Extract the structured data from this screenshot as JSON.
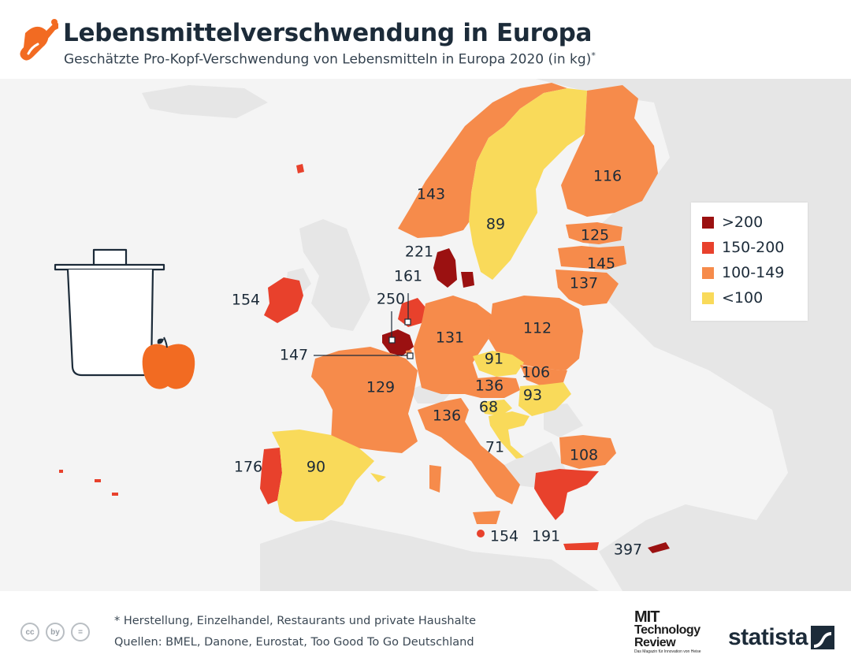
{
  "header": {
    "title": "Lebensmittelverschwendung in Europa",
    "subtitle": "Geschätzte Pro-Kopf-Verschwendung von Lebensmitteln in Europa 2020 (in kg)",
    "subtitle_marker": "*"
  },
  "icons": {
    "header": "chicken-leg-icon",
    "illustration": "trash-can-icon",
    "fruit": "apple-icon"
  },
  "colors": {
    "over_200": "#9b1111",
    "150_200": "#e8412c",
    "100_149": "#f68b4b",
    "under_100": "#f9da5a",
    "land_other": "#e6e6e6",
    "sea": "#f4f4f4"
  },
  "legend": [
    {
      "label": ">200",
      "color": "#9b1111"
    },
    {
      "label": "150-200",
      "color": "#e8412c"
    },
    {
      "label": "100-149",
      "color": "#f68b4b"
    },
    {
      "label": "<100",
      "color": "#f9da5a"
    }
  ],
  "map_values": {
    "ireland": "154",
    "norway": "143",
    "sweden": "89",
    "finland": "116",
    "estonia": "125",
    "latvia": "145",
    "lithuania": "137",
    "denmark": "221",
    "netherlands": "161",
    "belgium": "250",
    "luxembourg": "147",
    "germany": "131",
    "poland": "112",
    "czechia": "91",
    "slovakia": "106",
    "austria": "136",
    "hungary": "93",
    "slovenia": "68",
    "croatia": "71",
    "france": "129",
    "italy": "136",
    "portugal": "176",
    "spain": "90",
    "bulgaria": "108",
    "greece": "191",
    "malta": "154",
    "cyprus": "397"
  },
  "footer": {
    "note": "* Herstellung, Einzelhandel, Restaurants und private Haushalte",
    "sources": "Quellen: BMEL, Danone, Eurostat, Too Good To Go Deutschland",
    "cc_icons": [
      "cc",
      "by",
      "="
    ],
    "partner_line1": "MIT",
    "partner_line2": "Technology",
    "partner_line3": "Review",
    "partner_tagline": "Das Magazin für Innovation von Heise",
    "brand": "statista"
  }
}
